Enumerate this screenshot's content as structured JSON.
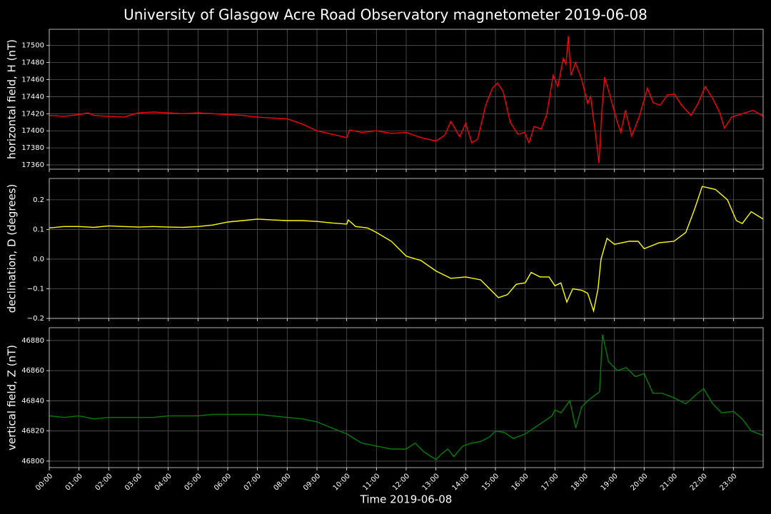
{
  "title": "University of Glasgow Acre Road Observatory magnetometer 2019-06-08",
  "chart_data": [
    {
      "type": "line",
      "ylabel": "horizontal field, H (nT)",
      "color": "#ff0000",
      "x": [
        0,
        0.5,
        1,
        1.3,
        1.5,
        2,
        2.5,
        3,
        3.5,
        4,
        4.5,
        5,
        5.5,
        6,
        6.5,
        7,
        7.5,
        8,
        8.5,
        9,
        9.5,
        10,
        10.1,
        10.5,
        11,
        11.5,
        12,
        12.5,
        13,
        13.3,
        13.5,
        13.8,
        14,
        14.2,
        14.4,
        14.67,
        14.9,
        15.07,
        15.26,
        15.5,
        15.75,
        15.98,
        16.13,
        16.3,
        16.54,
        16.73,
        16.94,
        17.1,
        17.28,
        17.37,
        17.45,
        17.54,
        17.69,
        17.9,
        18.1,
        18.2,
        18.35,
        18.48,
        18.57,
        18.67,
        18.86,
        19.1,
        19.22,
        19.37,
        19.58,
        19.82,
        20.11,
        20.3,
        20.54,
        20.78,
        21.02,
        21.26,
        21.57,
        21.81,
        22.05,
        22.3,
        22.53,
        22.7,
        22.94,
        23.3,
        23.66,
        24
      ],
      "values": [
        17418,
        17417,
        17419,
        17421,
        17418,
        17417,
        17416,
        17421,
        17422,
        17421,
        17420,
        17421,
        17420,
        17419,
        17418,
        17416,
        17415,
        17414,
        17408,
        17400,
        17396,
        17392,
        17401,
        17398,
        17400,
        17397,
        17398,
        17392,
        17388,
        17395,
        17411,
        17393,
        17409,
        17386,
        17390,
        17430,
        17450,
        17456,
        17446,
        17410,
        17396,
        17398,
        17386,
        17405,
        17402,
        17420,
        17465,
        17452,
        17485,
        17478,
        17511,
        17465,
        17480,
        17460,
        17432,
        17440,
        17400,
        17362,
        17420,
        17463,
        17440,
        17410,
        17398,
        17424,
        17394,
        17415,
        17450,
        17433,
        17430,
        17442,
        17443,
        17430,
        17418,
        17432,
        17452,
        17438,
        17422,
        17403,
        17416,
        17420,
        17424,
        17417
      ],
      "xlim": [
        0,
        24
      ],
      "ylim": [
        17355,
        17519
      ],
      "yticks": [
        17360,
        17380,
        17400,
        17420,
        17440,
        17460,
        17480,
        17500
      ],
      "grid": true
    },
    {
      "type": "line",
      "ylabel": "declination, D (degrees)",
      "color": "#ffff00",
      "x": [
        0,
        0.5,
        1,
        1.5,
        2,
        2.5,
        3,
        3.5,
        4,
        4.5,
        5,
        5.5,
        6,
        6.5,
        7,
        7.5,
        8,
        8.5,
        9,
        9.5,
        10,
        10.05,
        10.3,
        10.7,
        11,
        11.5,
        12,
        12.5,
        13,
        13.5,
        14,
        14.5,
        14.8,
        15.1,
        15.4,
        15.7,
        16,
        16.2,
        16.5,
        16.8,
        17,
        17.2,
        17.4,
        17.6,
        17.9,
        18.1,
        18.3,
        18.45,
        18.55,
        18.75,
        19,
        19.5,
        19.8,
        20,
        20.5,
        21,
        21.4,
        21.7,
        21.95,
        22.4,
        22.8,
        23.1,
        23.3,
        23.6,
        24
      ],
      "values": [
        0.105,
        0.11,
        0.11,
        0.107,
        0.112,
        0.11,
        0.108,
        0.11,
        0.108,
        0.107,
        0.11,
        0.115,
        0.125,
        0.13,
        0.135,
        0.132,
        0.13,
        0.13,
        0.127,
        0.122,
        0.118,
        0.132,
        0.11,
        0.105,
        0.09,
        0.06,
        0.01,
        -0.005,
        -0.04,
        -0.065,
        -0.06,
        -0.07,
        -0.1,
        -0.13,
        -0.12,
        -0.085,
        -0.08,
        -0.045,
        -0.06,
        -0.06,
        -0.09,
        -0.08,
        -0.145,
        -0.1,
        -0.105,
        -0.115,
        -0.175,
        -0.1,
        0.0,
        0.07,
        0.05,
        0.06,
        0.06,
        0.035,
        0.055,
        0.06,
        0.09,
        0.17,
        0.245,
        0.235,
        0.2,
        0.13,
        0.12,
        0.16,
        0.135
      ],
      "xlim": [
        0,
        24
      ],
      "ylim": [
        -0.2,
        0.272
      ],
      "yticks": [
        {
          "value": -0.2,
          "label": "−0.2"
        },
        {
          "value": -0.1,
          "label": "−0.1"
        },
        {
          "value": 0,
          "label": "0.0"
        },
        0.1,
        0.2
      ],
      "grid": true
    },
    {
      "type": "line",
      "ylabel": "vertical field, Z (nT)",
      "xlabel": "Time 2019-06-08",
      "color": "#008000",
      "x": [
        0,
        0.5,
        1,
        1.5,
        2,
        2.5,
        3,
        3.5,
        4,
        4.5,
        5,
        5.5,
        6,
        6.5,
        7,
        7.5,
        8,
        8.5,
        9,
        9.5,
        10,
        10.5,
        11,
        11.5,
        12,
        12.3,
        12.6,
        13,
        13.2,
        13.4,
        13.6,
        13.9,
        14.2,
        14.5,
        14.8,
        15,
        15.3,
        15.6,
        16,
        16.3,
        16.6,
        16.9,
        17,
        17.2,
        17.5,
        17.7,
        17.9,
        18.1,
        18.3,
        18.5,
        18.6,
        18.8,
        19.1,
        19.4,
        19.7,
        20,
        20.3,
        20.6,
        21,
        21.4,
        21.8,
        22,
        22.3,
        22.6,
        23,
        23.3,
        23.6,
        24
      ],
      "values": [
        46830,
        46829,
        46830,
        46828,
        46829,
        46829,
        46829,
        46829,
        46830,
        46830,
        46830,
        46831,
        46831,
        46831,
        46831,
        46830,
        46829,
        46828,
        46826,
        46822,
        46818,
        46812,
        46810,
        46808,
        46808,
        46812,
        46806,
        46801,
        46805,
        46808,
        46803,
        46810,
        46812,
        46813,
        46816,
        46820,
        46819,
        46815,
        46818,
        46822,
        46826,
        46830,
        46834,
        46832,
        46840,
        46822,
        46836,
        46840,
        46843,
        46846,
        46884,
        46866,
        46860,
        46862,
        46856,
        46858,
        46845,
        46845,
        46842,
        46838,
        46845,
        46848,
        46838,
        46832,
        46833,
        46828,
        46820,
        46817
      ],
      "xlim": [
        0,
        24
      ],
      "ylim": [
        46795.7,
        46888.5
      ],
      "yticks": [
        46800,
        46820,
        46840,
        46860,
        46880
      ],
      "xticks": [
        {
          "value": 0,
          "label": "00:00"
        },
        {
          "value": 1,
          "label": "01:00"
        },
        {
          "value": 2,
          "label": "02:00"
        },
        {
          "value": 3,
          "label": "03:00"
        },
        {
          "value": 4,
          "label": "04:00"
        },
        {
          "value": 5,
          "label": "05:00"
        },
        {
          "value": 6,
          "label": "06:00"
        },
        {
          "value": 7,
          "label": "07:00"
        },
        {
          "value": 8,
          "label": "08:00"
        },
        {
          "value": 9,
          "label": "09:00"
        },
        {
          "value": 10,
          "label": "10:00"
        },
        {
          "value": 11,
          "label": "11:00"
        },
        {
          "value": 12,
          "label": "12:00"
        },
        {
          "value": 13,
          "label": "13:00"
        },
        {
          "value": 14,
          "label": "14:00"
        },
        {
          "value": 15,
          "label": "15:00"
        },
        {
          "value": 16,
          "label": "16:00"
        },
        {
          "value": 17,
          "label": "17:00"
        },
        {
          "value": 18,
          "label": "18:00"
        },
        {
          "value": 19,
          "label": "19:00"
        },
        {
          "value": 20,
          "label": "20:00"
        },
        {
          "value": 21,
          "label": "21:00"
        },
        {
          "value": 22,
          "label": "22:00"
        },
        {
          "value": 23,
          "label": "23:00"
        }
      ],
      "grid": true
    }
  ]
}
